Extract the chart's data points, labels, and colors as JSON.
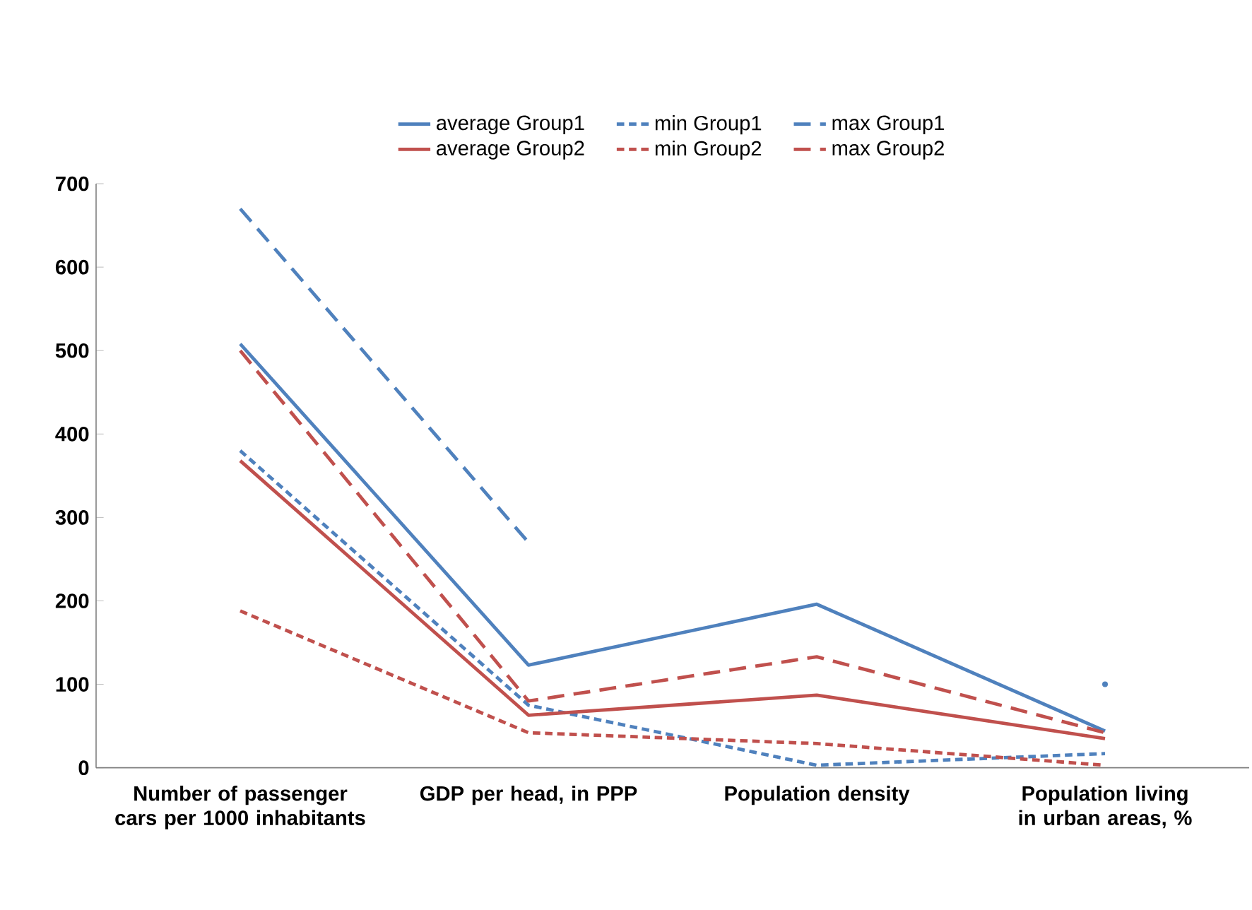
{
  "chart_data": {
    "type": "line",
    "categories": [
      "Number of passenger cars per 1000 inhabitants",
      "GDP per head, in PPP",
      "Population density",
      "Population living in urban areas, %"
    ],
    "series": [
      {
        "name": "average Group1",
        "color": "#4f81bd",
        "line_style": "solid",
        "values": [
          508,
          123,
          196,
          44
        ]
      },
      {
        "name": "min Group1",
        "color": "#4f81bd",
        "line_style": "dotted",
        "values": [
          380,
          75,
          3,
          17
        ]
      },
      {
        "name": "max Group1",
        "color": "#4f81bd",
        "line_style": "dashed",
        "values": [
          670,
          270,
          null,
          100
        ]
      },
      {
        "name": "average Group2",
        "color": "#c0504d",
        "line_style": "solid",
        "values": [
          368,
          63,
          87,
          35
        ]
      },
      {
        "name": "min Group2",
        "color": "#c0504d",
        "line_style": "dotted",
        "values": [
          188,
          42,
          29,
          3
        ]
      },
      {
        "name": "max Group2",
        "color": "#c0504d",
        "line_style": "dashed",
        "values": [
          500,
          80,
          133,
          42
        ]
      }
    ],
    "ylim": [
      0,
      700
    ],
    "yticks": [
      0,
      100,
      200,
      300,
      400,
      500,
      600,
      700
    ],
    "grid": false,
    "legend": "top",
    "marker": "none"
  }
}
